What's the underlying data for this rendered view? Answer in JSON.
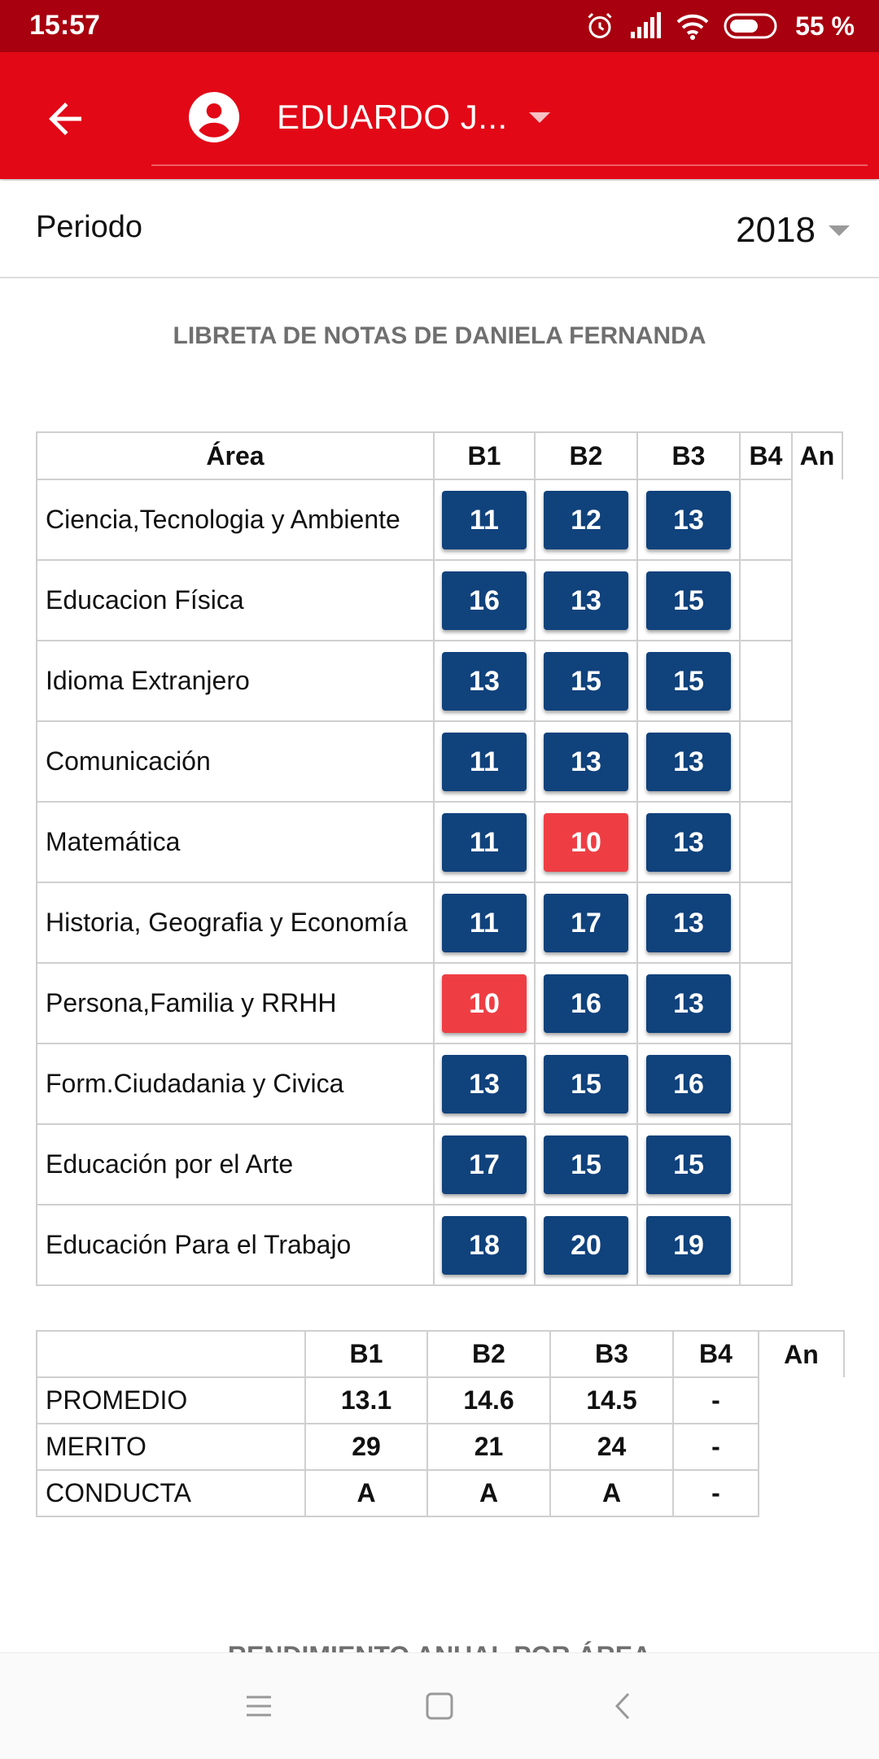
{
  "status_bar": {
    "time": "15:57",
    "battery": "55 %"
  },
  "app_bar": {
    "user_name": "EDUARDO J..."
  },
  "period": {
    "label": "Periodo",
    "value": "2018"
  },
  "report_title": "LIBRETA DE NOTAS DE DANIELA FERNANDA",
  "grades_table": {
    "headers": [
      "Área",
      "B1",
      "B2",
      "B3",
      "B4",
      "An"
    ],
    "rows": [
      {
        "area": "Ciencia,Tecnologia y Ambiente",
        "b1": "11",
        "b2": "12",
        "b3": "13"
      },
      {
        "area": "Educacion Física",
        "b1": "16",
        "b2": "13",
        "b3": "15"
      },
      {
        "area": "Idioma Extranjero",
        "b1": "13",
        "b2": "15",
        "b3": "15"
      },
      {
        "area": "Comunicación",
        "b1": "11",
        "b2": "13",
        "b3": "13"
      },
      {
        "area": "Matemática",
        "b1": "11",
        "b2": "10",
        "b3": "13"
      },
      {
        "area": "Historia, Geografia y Economía",
        "b1": "11",
        "b2": "17",
        "b3": "13"
      },
      {
        "area": "Persona,Familia y RRHH",
        "b1": "10",
        "b2": "16",
        "b3": "13"
      },
      {
        "area": "Form.Ciudadania y Civica",
        "b1": "13",
        "b2": "15",
        "b3": "16"
      },
      {
        "area": "Educación por el Arte",
        "b1": "17",
        "b2": "15",
        "b3": "15"
      },
      {
        "area": "Educación Para el Trabajo",
        "b1": "18",
        "b2": "20",
        "b3": "19"
      }
    ]
  },
  "summary_table": {
    "headers": [
      "",
      "B1",
      "B2",
      "B3",
      "B4",
      "An"
    ],
    "rows": [
      {
        "label": "PROMEDIO",
        "b1": "13.1",
        "b2": "14.6",
        "b3": "14.5",
        "b4": "-"
      },
      {
        "label": "MERITO",
        "b1": "29",
        "b2": "21",
        "b3": "24",
        "b4": "-"
      },
      {
        "label": "CONDUCTA",
        "b1": "A",
        "b2": "A",
        "b3": "A",
        "b4": "-"
      }
    ]
  },
  "next_section_title": "RENDIMIENTO ANUAL POR ÁREA",
  "colors": {
    "status_bar": "#a8000e",
    "app_bar": "#e20816",
    "grade_pass": "#10427c",
    "grade_fail": "#ee3e44"
  },
  "icons": [
    "alarm-icon",
    "signal-icon",
    "wifi-icon",
    "battery-icon",
    "back-arrow-icon",
    "account-circle-icon",
    "dropdown-caret-icon",
    "menu-icon",
    "home-icon",
    "back-icon"
  ]
}
